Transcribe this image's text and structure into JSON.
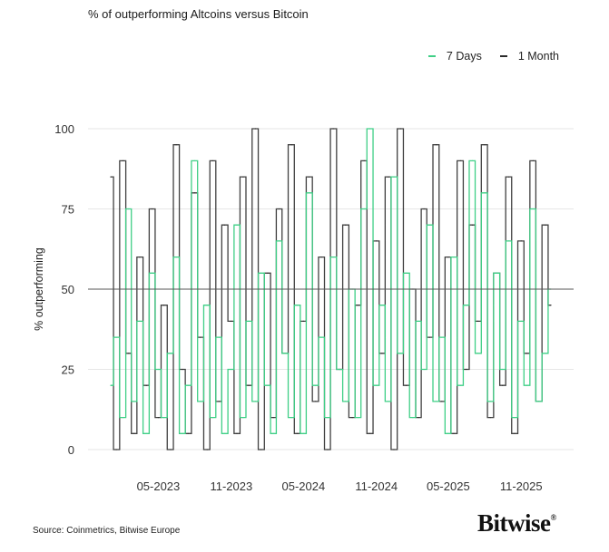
{
  "chart_data": {
    "type": "line",
    "title": "% of outperforming Altcoins versus Bitcoin",
    "xlabel": "",
    "ylabel": "% outperforming",
    "ylim": [
      0,
      100
    ],
    "yticks": [
      "0",
      "25",
      "50",
      "75",
      "100"
    ],
    "xticks": [
      {
        "date": "2023-05-01",
        "label": "05-2023"
      },
      {
        "date": "2023-11-01",
        "label": "11-2023"
      },
      {
        "date": "2024-05-01",
        "label": "05-2024"
      },
      {
        "date": "2024-11-01",
        "label": "11-2024"
      },
      {
        "date": "2025-05-01",
        "label": "05-2025"
      },
      {
        "date": "2025-11-01",
        "label": "11-2025"
      }
    ],
    "xlim": [
      "2023-01-01",
      "2026-01-15"
    ],
    "reference_line": 50,
    "grid": true,
    "legend_position": "top-right",
    "x": [
      "2023-01-01",
      "2023-01-15",
      "2023-02-01",
      "2023-02-15",
      "2023-03-01",
      "2023-03-15",
      "2023-04-01",
      "2023-04-15",
      "2023-05-01",
      "2023-05-15",
      "2023-06-01",
      "2023-06-15",
      "2023-07-01",
      "2023-07-15",
      "2023-08-01",
      "2023-08-15",
      "2023-09-01",
      "2023-09-15",
      "2023-10-01",
      "2023-10-15",
      "2023-11-01",
      "2023-11-15",
      "2023-12-01",
      "2023-12-15",
      "2024-01-01",
      "2024-01-15",
      "2024-02-01",
      "2024-02-15",
      "2024-03-01",
      "2024-03-15",
      "2024-04-01",
      "2024-04-15",
      "2024-05-01",
      "2024-05-15",
      "2024-06-01",
      "2024-06-15",
      "2024-07-01",
      "2024-07-15",
      "2024-08-01",
      "2024-08-15",
      "2024-09-01",
      "2024-09-15",
      "2024-10-01",
      "2024-10-15",
      "2024-11-01",
      "2024-11-15",
      "2024-12-01",
      "2024-12-15",
      "2025-01-01",
      "2025-01-15",
      "2025-02-01",
      "2025-02-15",
      "2025-03-01",
      "2025-03-15",
      "2025-04-01",
      "2025-04-15",
      "2025-05-01",
      "2025-05-15",
      "2025-06-01",
      "2025-06-15",
      "2025-07-01",
      "2025-07-15",
      "2025-08-01",
      "2025-08-15",
      "2025-09-01",
      "2025-09-15",
      "2025-10-01",
      "2025-10-15",
      "2025-11-01",
      "2025-11-15",
      "2025-12-01",
      "2025-12-15",
      "2026-01-01",
      "2026-01-15"
    ],
    "series": [
      {
        "name": "1 Month",
        "color": "#2b2b2b",
        "values": [
          85,
          0,
          90,
          30,
          5,
          60,
          20,
          75,
          10,
          45,
          0,
          95,
          25,
          5,
          80,
          35,
          0,
          90,
          15,
          70,
          40,
          5,
          85,
          20,
          100,
          0,
          55,
          10,
          75,
          30,
          95,
          5,
          40,
          85,
          15,
          60,
          0,
          100,
          25,
          70,
          10,
          45,
          90,
          5,
          65,
          30,
          85,
          0,
          100,
          20,
          50,
          10,
          75,
          35,
          95,
          15,
          60,
          5,
          90,
          25,
          70,
          40,
          95,
          10,
          55,
          20,
          85,
          5,
          65,
          30,
          90,
          15,
          70,
          45
        ]
      },
      {
        "name": "7 Days",
        "color": "#3fcf86",
        "values": [
          20,
          35,
          10,
          75,
          15,
          40,
          5,
          55,
          25,
          10,
          30,
          60,
          5,
          20,
          90,
          15,
          45,
          10,
          35,
          5,
          25,
          70,
          10,
          40,
          15,
          55,
          20,
          5,
          65,
          30,
          10,
          45,
          5,
          80,
          20,
          35,
          10,
          60,
          25,
          15,
          50,
          10,
          75,
          100,
          20,
          45,
          15,
          85,
          30,
          55,
          10,
          40,
          25,
          70,
          15,
          35,
          5,
          60,
          20,
          45,
          90,
          30,
          80,
          15,
          55,
          25,
          65,
          10,
          40,
          20,
          75,
          15,
          30,
          50
        ]
      }
    ]
  },
  "footer": {
    "source": "Source: Coinmetrics, Bitwise Europe",
    "logo_text": "Bitwise",
    "logo_mark": "®"
  }
}
